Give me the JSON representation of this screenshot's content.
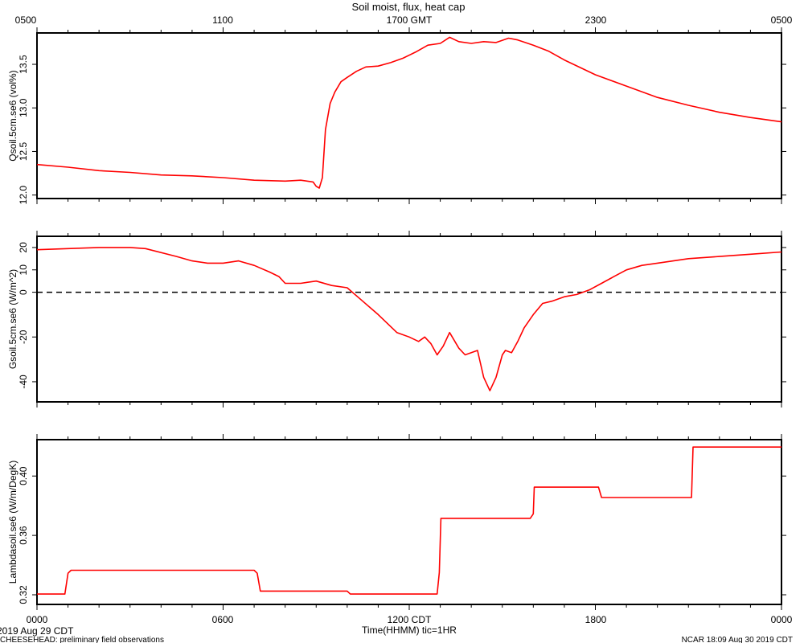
{
  "figure": {
    "title": "Soil moist, flux, heat cap",
    "x_label": "Time(HHMM)  tic=1HR",
    "footer_left_date": "2019 Aug 29 CDT",
    "footer_left_note": "CHEESEHEAD: preliminary field observations",
    "footer_right": "NCAR 18:09 Aug 30 2019 CDT",
    "top_axis_ticks": [
      "0500",
      "1100",
      "1700 GMT",
      "2300",
      "0500"
    ],
    "bottom_axis_ticks": [
      "0000",
      "0600",
      "1200 CDT",
      "1800",
      "0000"
    ],
    "line_color": "#ff0000"
  },
  "chart_data": [
    {
      "type": "line",
      "ylabel": "Qsoil.5cm.se6 (vol%)",
      "yticks": [
        "12.0",
        "12.5",
        "13.0",
        "13.5"
      ],
      "ylim": [
        11.96,
        13.86
      ],
      "xlim": [
        0,
        24
      ],
      "x": [
        0,
        1,
        2,
        3,
        4,
        5,
        6,
        7,
        8,
        8.5,
        8.9,
        9.0,
        9.1,
        9.2,
        9.3,
        9.45,
        9.6,
        9.8,
        10.0,
        10.3,
        10.6,
        11.0,
        11.4,
        11.8,
        12.2,
        12.6,
        13.0,
        13.3,
        13.6,
        14.0,
        14.4,
        14.8,
        15.2,
        15.5,
        16.0,
        16.5,
        17.0,
        18.0,
        19.0,
        20.0,
        21.0,
        22.0,
        23.0,
        24.0
      ],
      "y": [
        12.35,
        12.32,
        12.28,
        12.26,
        12.23,
        12.22,
        12.2,
        12.17,
        12.16,
        12.17,
        12.15,
        12.1,
        12.08,
        12.2,
        12.75,
        13.05,
        13.18,
        13.3,
        13.35,
        13.42,
        13.47,
        13.48,
        13.52,
        13.57,
        13.64,
        13.72,
        13.74,
        13.81,
        13.76,
        13.74,
        13.76,
        13.75,
        13.8,
        13.78,
        13.72,
        13.65,
        13.55,
        13.38,
        13.25,
        13.12,
        13.03,
        12.95,
        12.89,
        12.84
      ]
    },
    {
      "type": "line",
      "ylabel": "Gsoil.5cm.se6 (W/m^2)",
      "yticks": [
        "-40",
        "-20",
        "0",
        "10",
        "20"
      ],
      "ylim": [
        -49,
        25
      ],
      "xlim": [
        0,
        24
      ],
      "reference_line": {
        "y": 0,
        "style": "dashed"
      },
      "x": [
        0,
        1,
        2,
        3,
        3.5,
        4.5,
        5.0,
        5.5,
        6.0,
        6.5,
        7.0,
        7.5,
        7.8,
        8.0,
        8.5,
        9.0,
        9.5,
        10.0,
        10.5,
        11.0,
        11.3,
        11.6,
        12.0,
        12.3,
        12.5,
        12.7,
        12.9,
        13.1,
        13.3,
        13.6,
        13.8,
        14.0,
        14.2,
        14.4,
        14.6,
        14.8,
        15.0,
        15.1,
        15.3,
        15.5,
        15.7,
        16.0,
        16.3,
        16.6,
        17.0,
        17.4,
        17.8,
        18.2,
        18.6,
        19.0,
        19.5,
        20.0,
        21.0,
        22.0,
        23.0,
        24.0
      ],
      "y": [
        19,
        19.5,
        20,
        20,
        19.5,
        16,
        14,
        13,
        13,
        14,
        12,
        9,
        7,
        4,
        4,
        5,
        3,
        2,
        -4,
        -10,
        -14,
        -18,
        -20,
        -22,
        -20,
        -23,
        -28,
        -24,
        -18,
        -25,
        -28,
        -27,
        -26,
        -38,
        -44,
        -38,
        -28,
        -26,
        -27,
        -22,
        -16,
        -10,
        -5,
        -4,
        -2,
        -1,
        1,
        4,
        7,
        10,
        12,
        13,
        15,
        16,
        17,
        18
      ]
    },
    {
      "type": "line",
      "ylabel": "Lambdasoil.se6 (W/m/DegK)",
      "yticks": [
        "0.32",
        "0.36",
        "0.40"
      ],
      "ylim": [
        0.3135,
        0.4245
      ],
      "xlim": [
        0,
        24
      ],
      "x": [
        0,
        0.9,
        1.0,
        1.1,
        1.2,
        7.0,
        7.1,
        7.2,
        10.0,
        10.1,
        12.9,
        12.97,
        13.02,
        15.9,
        16.0,
        16.03,
        18.1,
        18.2,
        21.1,
        21.15,
        24.0
      ],
      "y": [
        0.3205,
        0.3205,
        0.3345,
        0.3365,
        0.3365,
        0.3365,
        0.3345,
        0.3225,
        0.3225,
        0.3205,
        0.3205,
        0.335,
        0.3715,
        0.3715,
        0.3745,
        0.3925,
        0.3925,
        0.3855,
        0.3855,
        0.4195,
        0.4195
      ]
    }
  ]
}
